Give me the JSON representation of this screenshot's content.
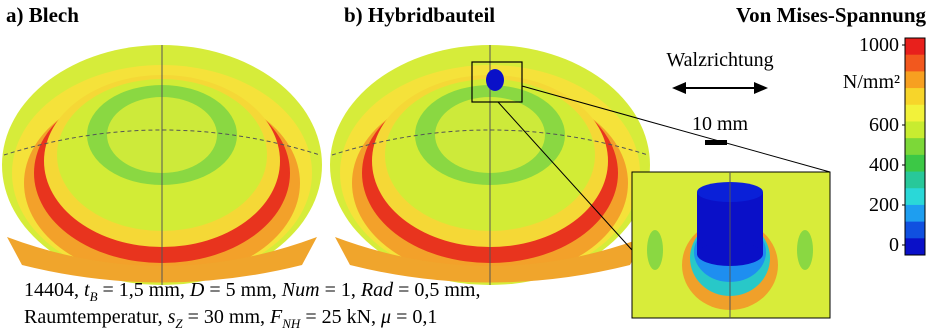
{
  "panels": {
    "left_title": "a) Blech",
    "middle_title": "b) Hybridbauteil"
  },
  "legend": {
    "title": "Von Mises-Spannung",
    "unit": "N/mm²",
    "range": [
      0,
      1000
    ],
    "ticks": [
      1000,
      600,
      400,
      200,
      0
    ],
    "colors": [
      "#e8201c",
      "#f2581e",
      "#f7a020",
      "#f7d52a",
      "#f2f23a",
      "#c8ec30",
      "#7cd838",
      "#3cc846",
      "#28c89a",
      "#2ad8d8",
      "#1e9ef0",
      "#1050e0",
      "#0a10c8"
    ]
  },
  "direction": {
    "label": "Walzrichtung"
  },
  "scale_bar": {
    "label": "10 mm"
  },
  "caption": {
    "line1": [
      "14404, ",
      "t",
      "B",
      " = 1,5 mm, ",
      "D",
      " = 5 mm, ",
      "Num",
      " = 1, ",
      "Rad",
      " = 0,5 mm,"
    ],
    "line2": [
      "Raumtemperatur, ",
      "s",
      "Z",
      " = 30 mm, ",
      "F",
      "NH",
      " = 25 kN, ",
      "μ",
      " = 0,1"
    ]
  }
}
